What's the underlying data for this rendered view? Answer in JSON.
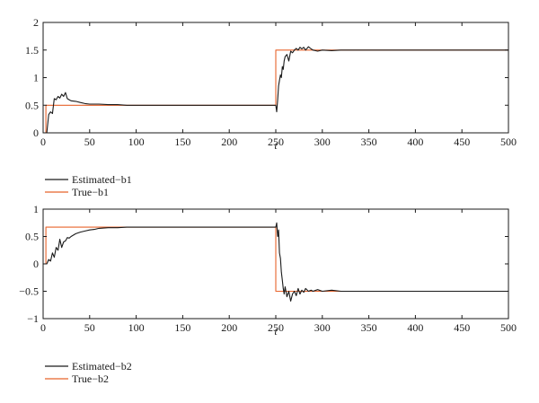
{
  "chart_data": [
    {
      "type": "line",
      "title": "",
      "xlabel": "t",
      "ylabel": "",
      "xlim": [
        0,
        500
      ],
      "ylim": [
        0,
        2
      ],
      "xticks": [
        0,
        50,
        100,
        150,
        200,
        250,
        300,
        350,
        400,
        450,
        500
      ],
      "yticks": [
        0,
        0.5,
        1,
        1.5,
        2
      ],
      "ytick_labels": [
        "0",
        "0.5",
        "1",
        "1.5",
        "2"
      ],
      "grid": false,
      "legend_position": "below-left",
      "series": [
        {
          "name": "Estimated−b1",
          "color": "#1a1a1a",
          "x": [
            0,
            2,
            4,
            6,
            8,
            10,
            12,
            14,
            16,
            18,
            20,
            22,
            24,
            26,
            28,
            30,
            35,
            40,
            45,
            50,
            60,
            70,
            80,
            90,
            100,
            150,
            200,
            249,
            250,
            251,
            252,
            253,
            254,
            255,
            256,
            257,
            258,
            259,
            260,
            262,
            264,
            266,
            268,
            270,
            272,
            274,
            276,
            278,
            280,
            282,
            285,
            288,
            290,
            295,
            300,
            310,
            320,
            330,
            340,
            350,
            400,
            450,
            500
          ],
          "y": [
            0,
            0,
            0,
            0.33,
            0.38,
            0.35,
            0.62,
            0.6,
            0.66,
            0.63,
            0.7,
            0.66,
            0.73,
            0.62,
            0.6,
            0.58,
            0.57,
            0.55,
            0.53,
            0.52,
            0.52,
            0.51,
            0.51,
            0.5,
            0.5,
            0.5,
            0.5,
            0.5,
            0.5,
            0.38,
            0.6,
            0.85,
            0.95,
            1.05,
            1.0,
            1.2,
            1.15,
            1.3,
            1.38,
            1.42,
            1.3,
            1.48,
            1.45,
            1.5,
            1.53,
            1.5,
            1.55,
            1.52,
            1.55,
            1.5,
            1.56,
            1.52,
            1.5,
            1.48,
            1.5,
            1.49,
            1.5,
            1.5,
            1.5,
            1.5,
            1.5,
            1.5,
            1.5
          ]
        },
        {
          "name": "True−b1",
          "color": "#e8632b",
          "x": [
            0,
            3,
            3,
            250,
            250,
            500
          ],
          "y": [
            0,
            0,
            0.5,
            0.5,
            1.5,
            1.5
          ]
        }
      ]
    },
    {
      "type": "line",
      "title": "",
      "xlabel": "t",
      "ylabel": "",
      "xlim": [
        0,
        500
      ],
      "ylim": [
        -1,
        1
      ],
      "xticks": [
        0,
        50,
        100,
        150,
        200,
        250,
        300,
        350,
        400,
        450,
        500
      ],
      "yticks": [
        -1,
        -0.5,
        0,
        0.5,
        1
      ],
      "ytick_labels": [
        "−1",
        "−0.5",
        "0",
        "0.5",
        "1"
      ],
      "grid": false,
      "legend_position": "below-left",
      "series": [
        {
          "name": "Estimated−b2",
          "color": "#1a1a1a",
          "x": [
            0,
            2,
            4,
            6,
            8,
            10,
            12,
            14,
            16,
            18,
            20,
            22,
            24,
            26,
            28,
            30,
            35,
            40,
            45,
            50,
            55,
            60,
            70,
            80,
            90,
            100,
            150,
            200,
            249,
            250,
            251,
            252,
            253,
            254,
            255,
            256,
            257,
            258,
            259,
            260,
            262,
            264,
            266,
            268,
            270,
            272,
            274,
            276,
            278,
            280,
            282,
            285,
            288,
            290,
            295,
            300,
            310,
            320,
            330,
            340,
            350,
            400,
            450,
            500
          ],
          "y": [
            0,
            0,
            0,
            0.08,
            0.05,
            0.2,
            0.12,
            0.3,
            0.25,
            0.45,
            0.3,
            0.4,
            0.42,
            0.48,
            0.47,
            0.5,
            0.55,
            0.58,
            0.6,
            0.62,
            0.63,
            0.65,
            0.66,
            0.66,
            0.67,
            0.67,
            0.67,
            0.67,
            0.67,
            0.67,
            0.75,
            0.5,
            0.62,
            0.2,
            0.1,
            -0.15,
            -0.3,
            -0.45,
            -0.55,
            -0.42,
            -0.6,
            -0.5,
            -0.68,
            -0.55,
            -0.5,
            -0.58,
            -0.45,
            -0.55,
            -0.48,
            -0.52,
            -0.45,
            -0.5,
            -0.48,
            -0.5,
            -0.47,
            -0.5,
            -0.48,
            -0.5,
            -0.5,
            -0.5,
            -0.5,
            -0.5,
            -0.5,
            -0.5
          ]
        },
        {
          "name": "True−b2",
          "color": "#e8632b",
          "x": [
            0,
            3,
            3,
            250,
            250,
            500
          ],
          "y": [
            0,
            0,
            0.67,
            0.67,
            -0.5,
            -0.5
          ]
        }
      ]
    }
  ]
}
